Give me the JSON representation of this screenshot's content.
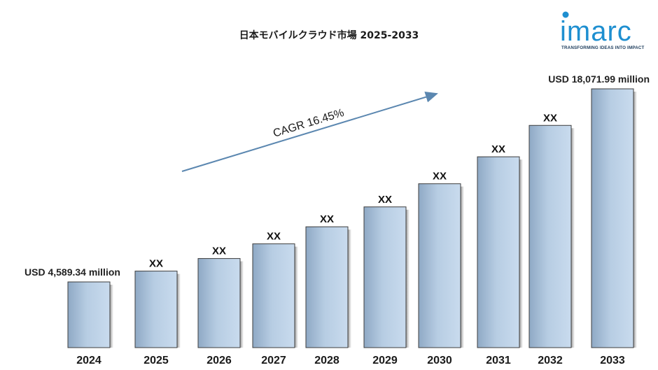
{
  "chart_data": {
    "type": "bar",
    "title": "日本モバイルクラウド市場 2025-2033",
    "categories": [
      "2024",
      "2025",
      "2026",
      "2027",
      "2028",
      "2029",
      "2030",
      "2031",
      "2032",
      "2033"
    ],
    "values": [
      4589.34,
      5344,
      6223,
      7247,
      8439,
      9828,
      11444,
      13327,
      15519,
      18071.99
    ],
    "unit": "USD million",
    "data_labels": [
      "USD 4,589.34 million",
      "XX",
      "XX",
      "XX",
      "XX",
      "XX",
      "XX",
      "XX",
      "XX",
      "USD  18,071.99 million"
    ],
    "cagr_label": "CAGR 16.45%",
    "bar_color": "#b4cbe2",
    "ylim": [
      0,
      18071.99
    ]
  },
  "logo": {
    "name": "imarc",
    "tagline": "TRANSFORMING IDEAS INTO IMPACT",
    "color": "#1e8fd0"
  }
}
